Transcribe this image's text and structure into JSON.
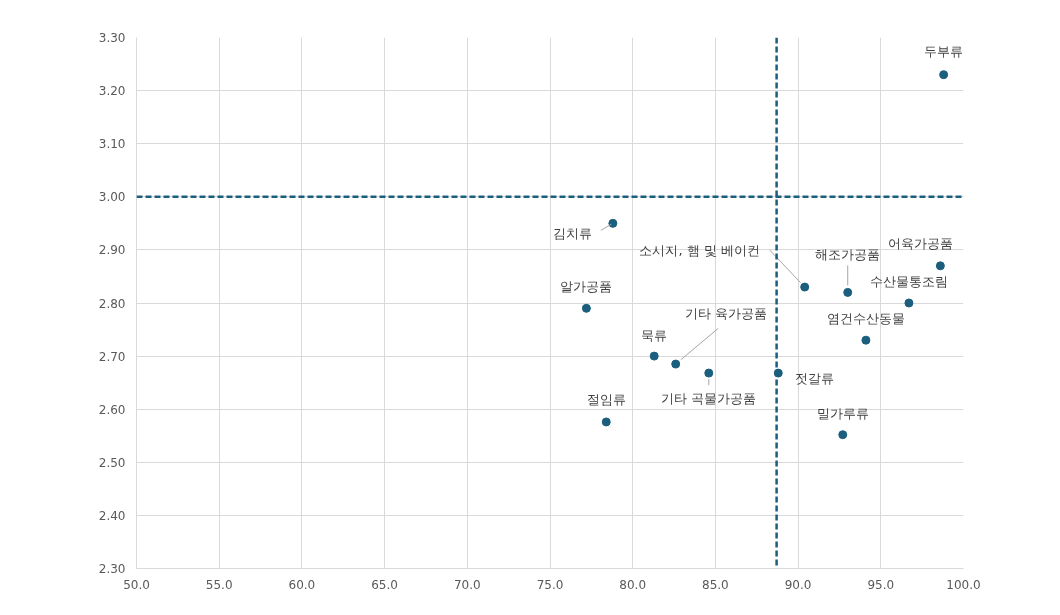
{
  "chart_data": {
    "type": "scatter",
    "x": [
      98.8,
      78.8,
      90.4,
      93.0,
      98.6,
      96.7,
      77.2,
      94.1,
      81.3,
      82.6,
      84.6,
      88.8,
      78.4,
      92.7
    ],
    "values": [
      3.23,
      2.95,
      2.83,
      2.82,
      2.87,
      2.8,
      2.79,
      2.73,
      2.7,
      2.685,
      2.668,
      2.668,
      2.576,
      2.552
    ],
    "color": "#1b5e7e",
    "marker": "circle",
    "grid": true,
    "xlim": [
      50,
      100
    ],
    "xticks": [
      {
        "value": 50,
        "label": "50.0"
      },
      {
        "value": 55,
        "label": "55.0"
      },
      {
        "value": 60,
        "label": "60.0"
      },
      {
        "value": 65,
        "label": "65.0"
      },
      {
        "value": 70,
        "label": "70.0"
      },
      {
        "value": 75,
        "label": "75.0"
      },
      {
        "value": 80,
        "label": "80.0"
      },
      {
        "value": 85,
        "label": "85.0"
      },
      {
        "value": 90,
        "label": "90.0"
      },
      {
        "value": 95,
        "label": "95.0"
      },
      {
        "value": 100,
        "label": "100.0"
      }
    ],
    "ylim": [
      2.3,
      3.3
    ],
    "yticks": [
      {
        "value": 2.3,
        "label": "2.30"
      },
      {
        "value": 2.4,
        "label": "2.40"
      },
      {
        "value": 2.5,
        "label": "2.50"
      },
      {
        "value": 2.6,
        "label": "2.60"
      },
      {
        "value": 2.7,
        "label": "2.70"
      },
      {
        "value": 2.8,
        "label": "2.80"
      },
      {
        "value": 2.9,
        "label": "2.90"
      },
      {
        "value": 3.0,
        "label": "3.00"
      },
      {
        "value": 3.1,
        "label": "3.10"
      },
      {
        "value": 3.2,
        "label": "3.20"
      },
      {
        "value": 3.3,
        "label": "3.30"
      }
    ],
    "ref_lines": [
      {
        "axis": "x",
        "value": 88.7,
        "color": "#1b5e7e",
        "line_style": "dashed"
      },
      {
        "axis": "y",
        "value": 3.0,
        "color": "#1b5e7e",
        "line_style": "dashed"
      }
    ],
    "annotations": [
      {
        "text": "두부류",
        "x": 98.8,
        "y": 3.23
      },
      {
        "text": "김치류",
        "x": 78.8,
        "y": 2.95
      },
      {
        "text": "소시지, 햄 및 베이컨",
        "x": 90.4,
        "y": 2.83
      },
      {
        "text": "해조가공품",
        "x": 93.0,
        "y": 2.82
      },
      {
        "text": "어육가공품",
        "x": 98.6,
        "y": 2.87
      },
      {
        "text": "수산물통조림",
        "x": 96.7,
        "y": 2.8
      },
      {
        "text": "알가공품",
        "x": 77.2,
        "y": 2.79
      },
      {
        "text": "염건수산동물",
        "x": 94.1,
        "y": 2.73
      },
      {
        "text": "묵류",
        "x": 81.3,
        "y": 2.7
      },
      {
        "text": "기타 육가공품",
        "x": 82.6,
        "y": 2.685
      },
      {
        "text": "기타 곡물가공품",
        "x": 84.6,
        "y": 2.668
      },
      {
        "text": "젓갈류",
        "x": 88.8,
        "y": 2.668
      },
      {
        "text": "절임류",
        "x": 78.4,
        "y": 2.576
      },
      {
        "text": "밀가루류",
        "x": 92.7,
        "y": 2.552
      }
    ]
  }
}
